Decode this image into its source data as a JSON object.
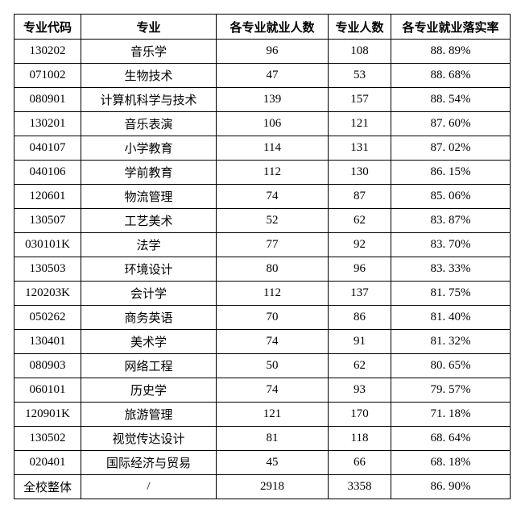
{
  "table": {
    "columns": [
      "专业代码",
      "专业",
      "各专业就业人数",
      "专业人数",
      "各专业就业落实率"
    ],
    "rows": [
      {
        "code": "130202",
        "major": "音乐学",
        "employed": "96",
        "total": "108",
        "rate": "88. 89%"
      },
      {
        "code": "071002",
        "major": "生物技术",
        "employed": "47",
        "total": "53",
        "rate": "88. 68%"
      },
      {
        "code": "080901",
        "major": "计算机科学与技术",
        "employed": "139",
        "total": "157",
        "rate": "88. 54%"
      },
      {
        "code": "130201",
        "major": "音乐表演",
        "employed": "106",
        "total": "121",
        "rate": "87. 60%"
      },
      {
        "code": "040107",
        "major": "小学教育",
        "employed": "114",
        "total": "131",
        "rate": "87. 02%"
      },
      {
        "code": "040106",
        "major": "学前教育",
        "employed": "112",
        "total": "130",
        "rate": "86. 15%"
      },
      {
        "code": "120601",
        "major": "物流管理",
        "employed": "74",
        "total": "87",
        "rate": "85. 06%"
      },
      {
        "code": "130507",
        "major": "工艺美术",
        "employed": "52",
        "total": "62",
        "rate": "83. 87%"
      },
      {
        "code": "030101K",
        "major": "法学",
        "employed": "77",
        "total": "92",
        "rate": "83. 70%"
      },
      {
        "code": "130503",
        "major": "环境设计",
        "employed": "80",
        "total": "96",
        "rate": "83. 33%"
      },
      {
        "code": "120203K",
        "major": "会计学",
        "employed": "112",
        "total": "137",
        "rate": "81. 75%"
      },
      {
        "code": "050262",
        "major": "商务英语",
        "employed": "70",
        "total": "86",
        "rate": "81. 40%"
      },
      {
        "code": "130401",
        "major": "美术学",
        "employed": "74",
        "total": "91",
        "rate": "81. 32%"
      },
      {
        "code": "080903",
        "major": "网络工程",
        "employed": "50",
        "total": "62",
        "rate": "80. 65%"
      },
      {
        "code": "060101",
        "major": "历史学",
        "employed": "74",
        "total": "93",
        "rate": "79. 57%"
      },
      {
        "code": "120901K",
        "major": "旅游管理",
        "employed": "121",
        "total": "170",
        "rate": "71. 18%"
      },
      {
        "code": "130502",
        "major": "视觉传达设计",
        "employed": "81",
        "total": "118",
        "rate": "68. 64%"
      },
      {
        "code": "020401",
        "major": "国际经济与贸易",
        "employed": "45",
        "total": "66",
        "rate": "68. 18%"
      },
      {
        "code": "全校整体",
        "major": "/",
        "employed": "2918",
        "total": "3358",
        "rate": "86. 90%"
      }
    ]
  }
}
